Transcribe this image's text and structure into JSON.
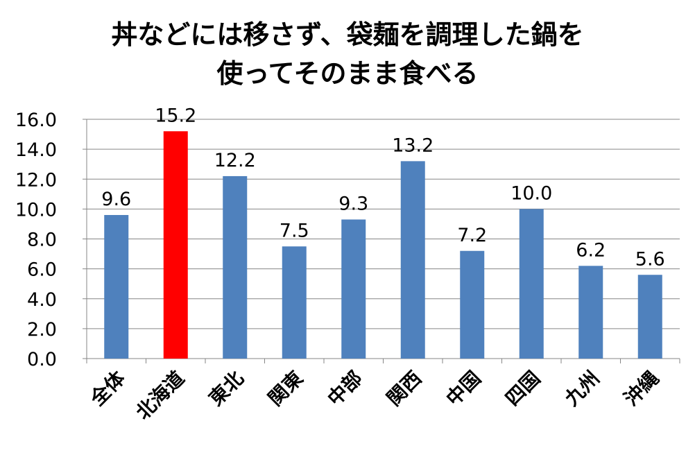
{
  "chart_data": {
    "type": "bar",
    "title_line1": "丼などには移さず、袋麺を調理した鍋を",
    "title_line2": "使ってそのまま食べる",
    "categories": [
      "全体",
      "北海道",
      "東北",
      "関東",
      "中部",
      "関西",
      "中国",
      "四国",
      "九州",
      "沖縄"
    ],
    "values": [
      9.6,
      15.2,
      12.2,
      7.5,
      9.3,
      13.2,
      7.2,
      10.0,
      6.2,
      5.6
    ],
    "value_labels": [
      "9.6",
      "15.2",
      "12.2",
      "7.5",
      "9.3",
      "13.2",
      "7.2",
      "10.0",
      "6.2",
      "5.6"
    ],
    "yticks": [
      "0.0",
      "2.0",
      "4.0",
      "6.0",
      "8.0",
      "10.0",
      "12.0",
      "14.0",
      "16.0"
    ],
    "ylim": [
      0,
      16
    ],
    "grid": true,
    "legend": "none",
    "colors": {
      "bar": "#4F81BD",
      "highlight": "#FF0000",
      "highlight_category": "北海道",
      "grid": "#868686"
    }
  }
}
